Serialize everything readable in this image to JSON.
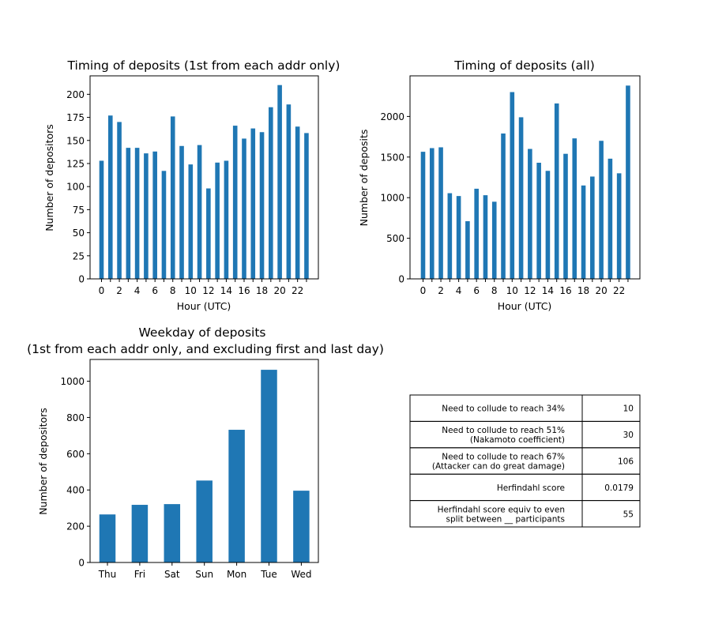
{
  "colors": {
    "bar": "#1f77b4",
    "axis": "#000000",
    "background": "#ffffff"
  },
  "chart_data": [
    {
      "type": "bar",
      "title": "Timing of deposits (1st from each addr only)",
      "xlabel": "Hour (UTC)",
      "ylabel": "Number of depositors",
      "categories": [
        0,
        1,
        2,
        3,
        4,
        5,
        6,
        7,
        8,
        9,
        10,
        11,
        12,
        13,
        14,
        15,
        16,
        17,
        18,
        19,
        20,
        21,
        22,
        23
      ],
      "xticks": [
        "0",
        "2",
        "4",
        "6",
        "8",
        "10",
        "12",
        "14",
        "16",
        "18",
        "20",
        "22"
      ],
      "values": [
        128,
        177,
        170,
        142,
        142,
        136,
        138,
        117,
        176,
        144,
        124,
        145,
        98,
        126,
        128,
        166,
        152,
        163,
        159,
        186,
        210,
        189,
        165,
        158
      ],
      "ylim": [
        0,
        220
      ],
      "yticks": [
        0,
        25,
        50,
        75,
        100,
        125,
        150,
        175,
        200
      ]
    },
    {
      "type": "bar",
      "title": "Timing of deposits (all)",
      "xlabel": "Hour (UTC)",
      "ylabel": "Number of deposits",
      "categories": [
        0,
        1,
        2,
        3,
        4,
        5,
        6,
        7,
        8,
        9,
        10,
        11,
        12,
        13,
        14,
        15,
        16,
        17,
        18,
        19,
        20,
        21,
        22,
        23
      ],
      "xticks": [
        "0",
        "2",
        "4",
        "6",
        "8",
        "10",
        "12",
        "14",
        "16",
        "18",
        "20",
        "22"
      ],
      "values": [
        1565,
        1610,
        1620,
        1055,
        1020,
        710,
        1110,
        1030,
        950,
        1790,
        2300,
        1990,
        1600,
        1430,
        1330,
        2160,
        1540,
        1730,
        1150,
        1260,
        1700,
        1480,
        1300,
        2380
      ],
      "ylim": [
        0,
        2500
      ],
      "yticks": [
        0,
        500,
        1000,
        1500,
        2000
      ]
    },
    {
      "type": "bar",
      "title": "Weekday of deposits",
      "subtitle": "(1st from each addr only, and excluding first and last day)",
      "xlabel": "",
      "ylabel": "Number of depositors",
      "categories": [
        "Thu",
        "Fri",
        "Sat",
        "Sun",
        "Mon",
        "Tue",
        "Wed"
      ],
      "values": [
        265,
        318,
        322,
        452,
        732,
        1063,
        396
      ],
      "ylim": [
        0,
        1120
      ],
      "yticks": [
        0,
        200,
        400,
        600,
        800,
        1000
      ]
    },
    {
      "type": "table",
      "rows": [
        {
          "label": [
            "Need to collude to reach 34%"
          ],
          "value": "10"
        },
        {
          "label": [
            "Need to collude to reach 51%",
            "(Nakamoto coefficient)"
          ],
          "value": "30"
        },
        {
          "label": [
            "Need to collude to reach 67%",
            "(Attacker can do great damage)"
          ],
          "value": "106"
        },
        {
          "label": [
            "Herfindahl score"
          ],
          "value": "0.0179"
        },
        {
          "label": [
            "Herfindahl score equiv to even",
            "split between __ participants"
          ],
          "value": "55"
        }
      ]
    }
  ]
}
